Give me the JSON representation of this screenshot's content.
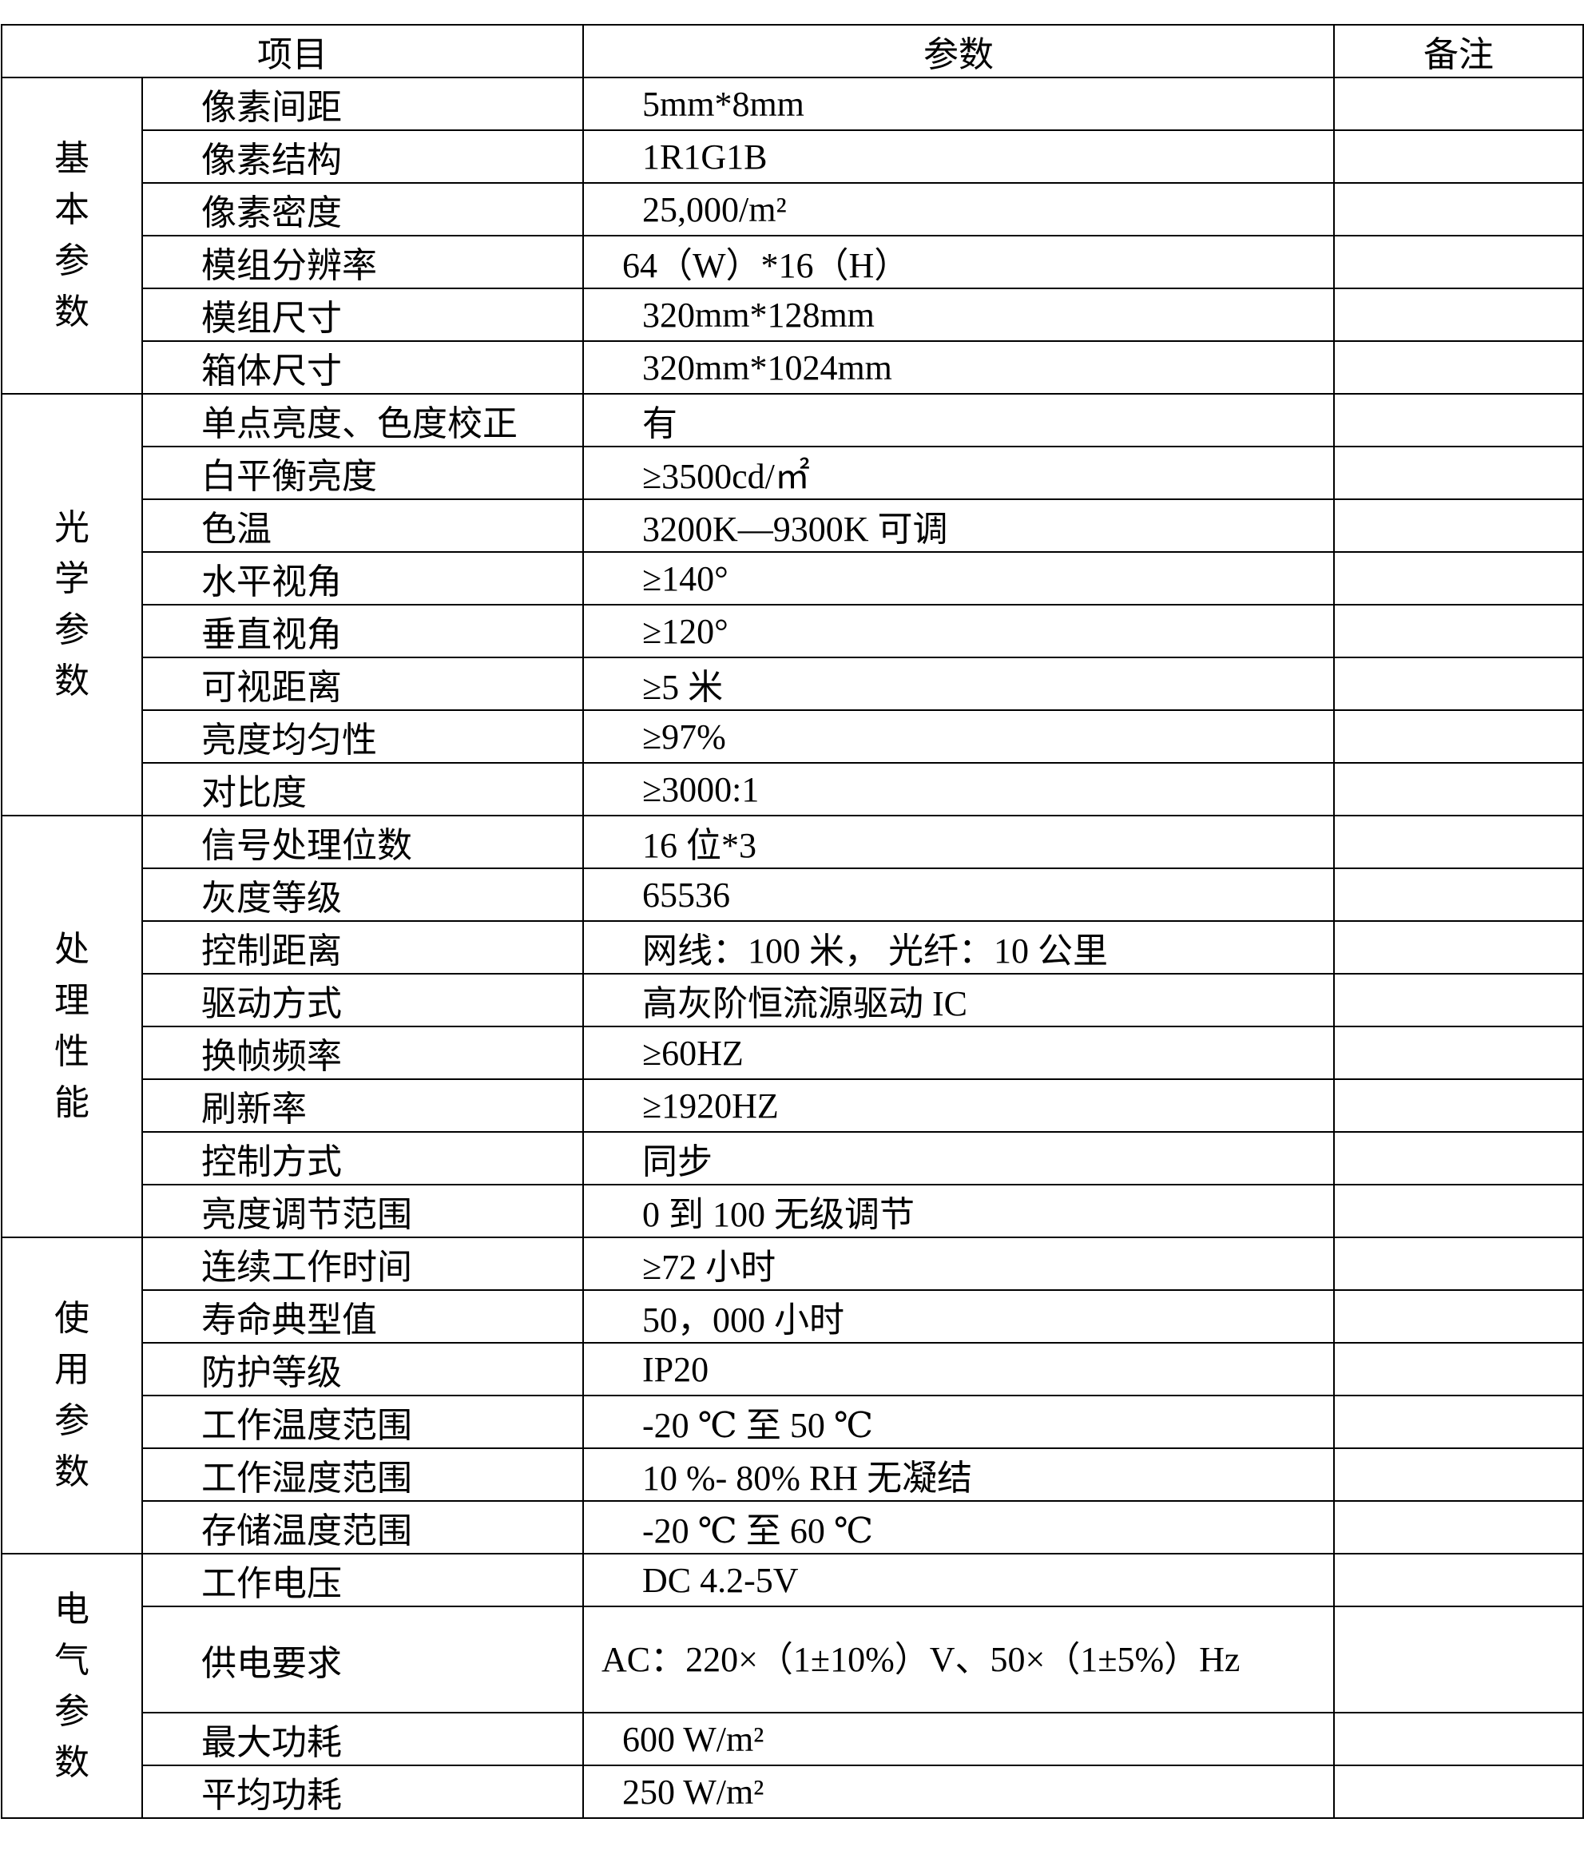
{
  "headers": [
    "项目",
    "参数",
    "备注"
  ],
  "groups": [
    {
      "label": "基本参数",
      "rows": [
        {
          "item": "像素间距",
          "value": "5mm*8mm",
          "note": ""
        },
        {
          "item": "像素结构",
          "value": "1R1G1B",
          "note": ""
        },
        {
          "item": "像素密度",
          "value": "25,000/m²",
          "note": ""
        },
        {
          "item": "模组分辨率",
          "value": "64（W）*16（H）",
          "note": "",
          "indent": 1
        },
        {
          "item": "模组尺寸",
          "value": "320mm*128mm",
          "note": ""
        },
        {
          "item": "箱体尺寸",
          "value": "320mm*1024mm",
          "note": ""
        }
      ]
    },
    {
      "label": "光学参数",
      "rows": [
        {
          "item": "单点亮度、色度校正",
          "value": "有",
          "note": ""
        },
        {
          "item": "白平衡亮度",
          "value": "≥3500cd/㎡",
          "note": ""
        },
        {
          "item": "色温",
          "value": "3200K—9300K 可调",
          "note": ""
        },
        {
          "item": "水平视角",
          "value": "≥140°",
          "note": ""
        },
        {
          "item": "垂直视角",
          "value": "≥120°",
          "note": ""
        },
        {
          "item": "可视距离",
          "value": "≥5 米",
          "note": ""
        },
        {
          "item": "亮度均匀性",
          "value": "≥97%",
          "note": ""
        },
        {
          "item": "对比度",
          "value": "≥3000:1",
          "note": ""
        }
      ]
    },
    {
      "label": "处理性能",
      "rows": [
        {
          "item": "信号处理位数",
          "value": "16 位*3",
          "note": ""
        },
        {
          "item": "灰度等级",
          "value": "65536",
          "note": ""
        },
        {
          "item": "控制距离",
          "value": "网线：100 米，  光纤：10 公里",
          "note": ""
        },
        {
          "item": "驱动方式",
          "value": "高灰阶恒流源驱动 IC",
          "note": ""
        },
        {
          "item": "换帧频率",
          "value": "≥60HZ",
          "note": ""
        },
        {
          "item": "刷新率",
          "value": "≥1920HZ",
          "note": ""
        },
        {
          "item": "控制方式",
          "value": "同步",
          "note": ""
        },
        {
          "item": "亮度调节范围",
          "value": "0 到 100 无级调节",
          "note": ""
        }
      ]
    },
    {
      "label": "使用参数",
      "rows": [
        {
          "item": "连续工作时间",
          "value": "≥72 小时",
          "note": ""
        },
        {
          "item": "寿命典型值",
          "value": "50，000  小时",
          "note": ""
        },
        {
          "item": "防护等级",
          "value": "IP20",
          "note": ""
        },
        {
          "item": "工作温度范围",
          "value": "-20 ℃  至  50 ℃",
          "note": ""
        },
        {
          "item": "工作湿度范围",
          "value": "10 %- 80% RH 无凝结",
          "note": ""
        },
        {
          "item": "存储温度范围",
          "value": "-20 ℃  至  60 ℃",
          "note": ""
        }
      ]
    },
    {
      "label": "电气参数",
      "rows": [
        {
          "item": "工作电压",
          "value": "DC 4.2-5V",
          "note": ""
        },
        {
          "item": "供电要求",
          "value": "AC：220×（1±10%）V、50×（1±5%）Hz",
          "note": "",
          "indent": 2
        },
        {
          "item": "最大功耗",
          "value": "600 W/m²",
          "note": "",
          "indent": 1
        },
        {
          "item": "平均功耗",
          "value": "250 W/m²",
          "note": "",
          "indent": 1
        }
      ]
    }
  ]
}
